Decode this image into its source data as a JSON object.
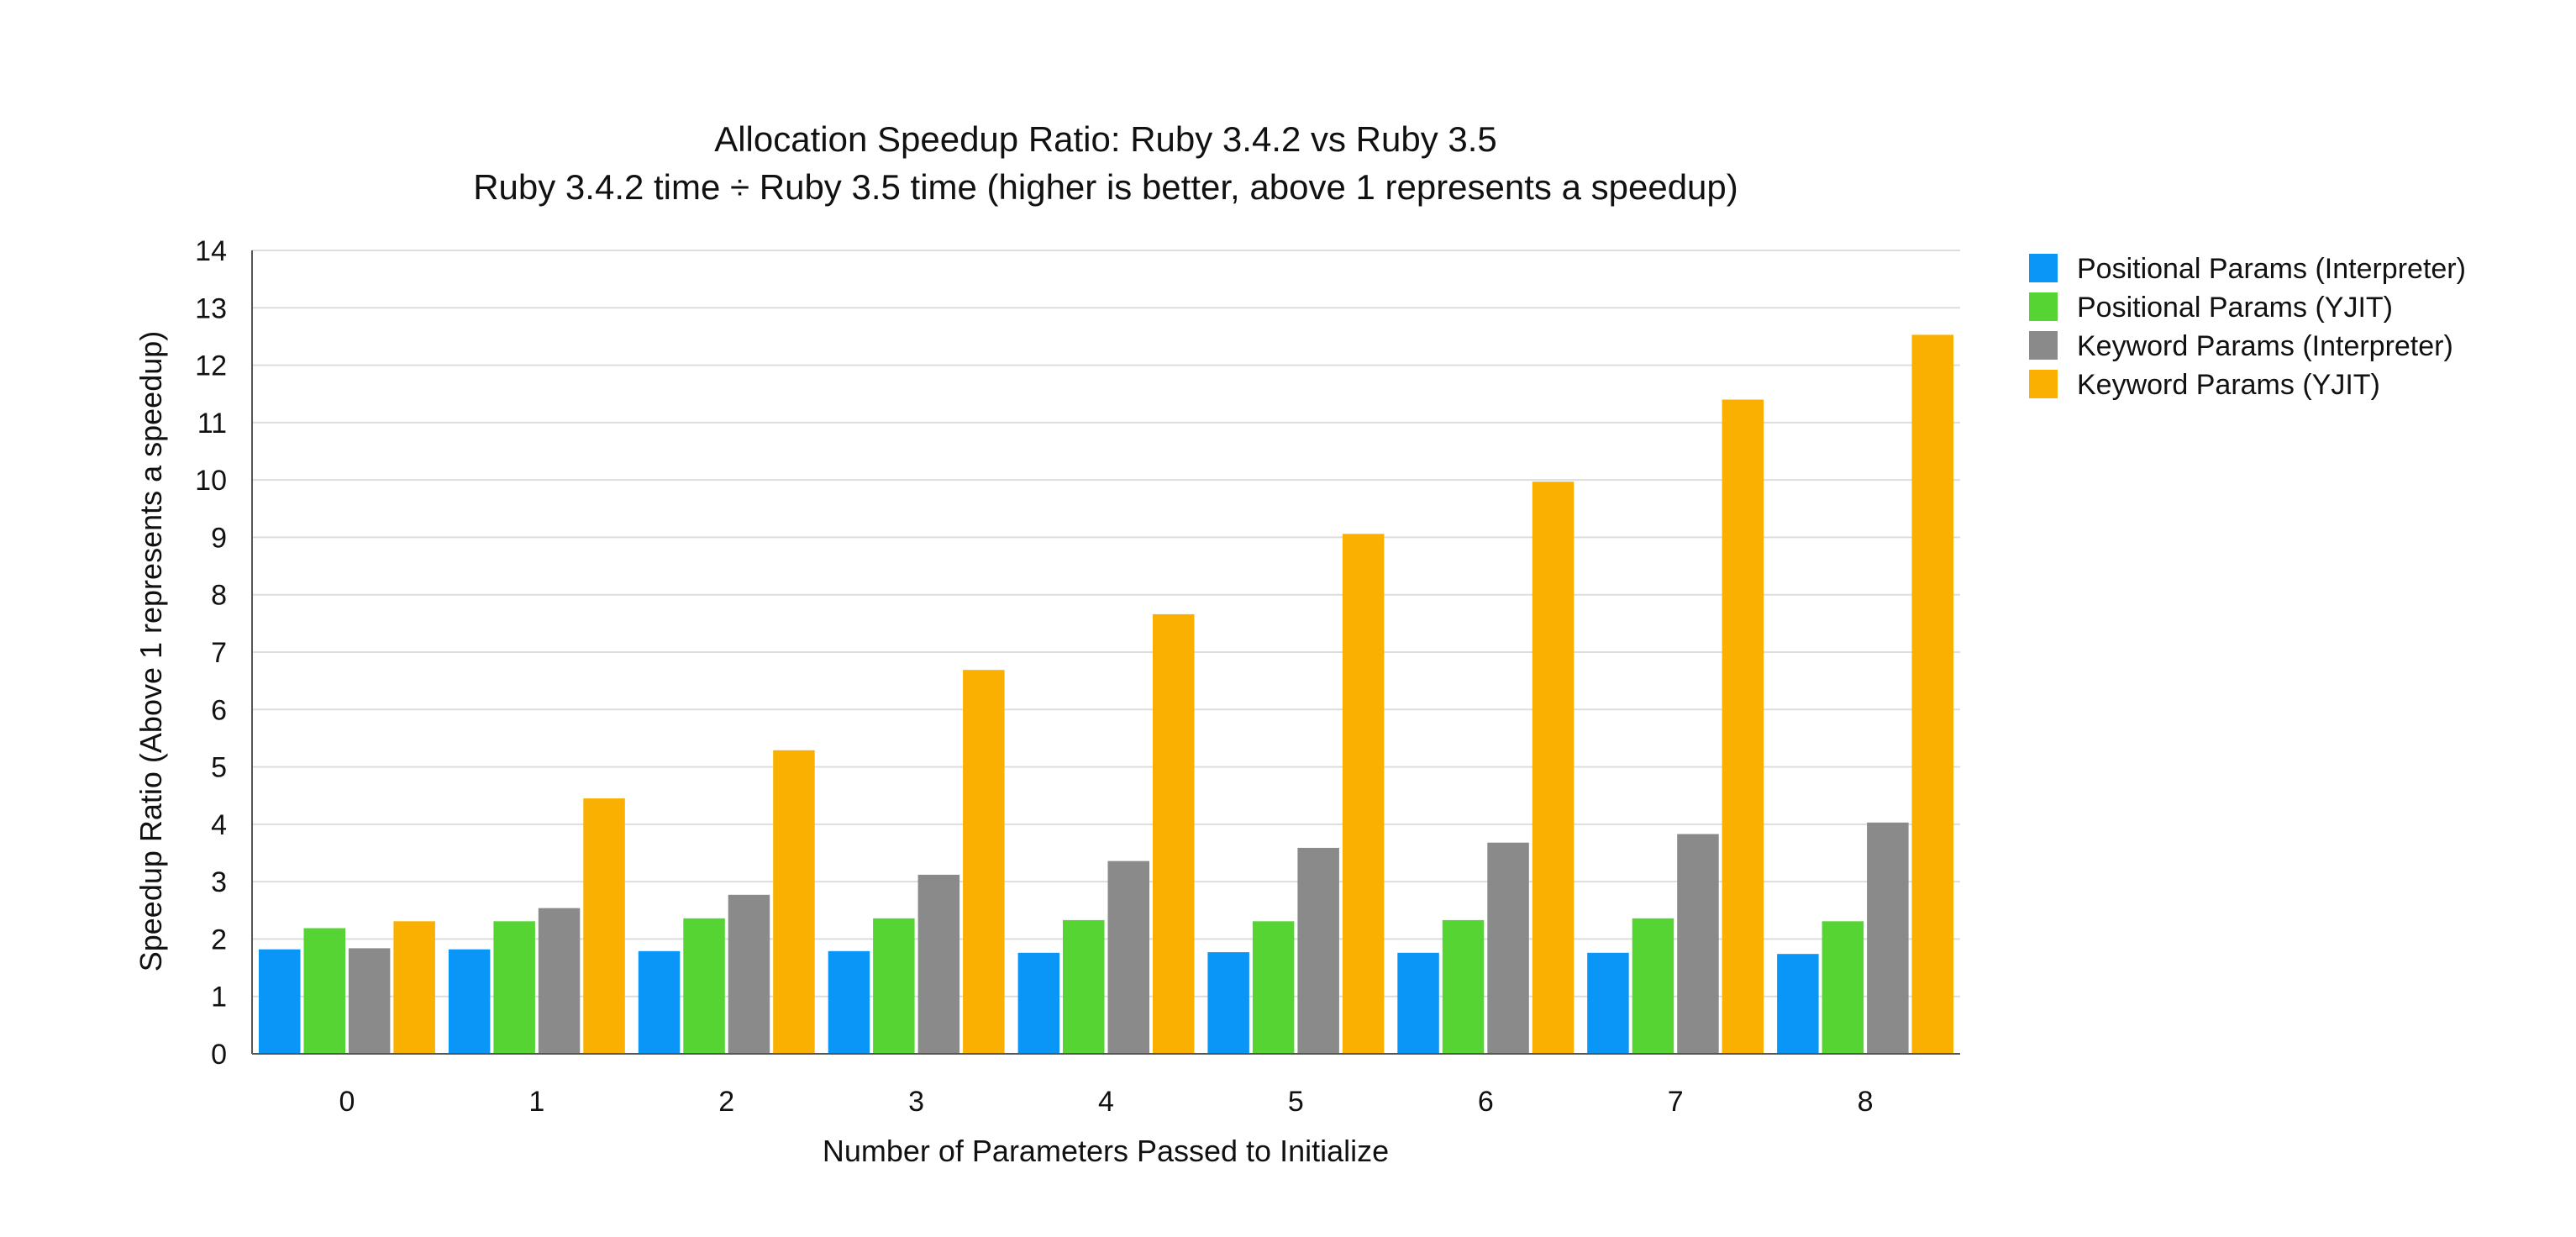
{
  "chart_data": {
    "type": "bar",
    "title": "Allocation Speedup Ratio: Ruby 3.4.2 vs Ruby 3.5",
    "subtitle": "Ruby 3.4.2 time ÷ Ruby 3.5 time (higher is better, above 1 represents a speedup)",
    "xlabel": "Number of Parameters Passed to Initialize",
    "ylabel": "Speedup Ratio (Above 1 represents a speedup)",
    "categories": [
      "0",
      "1",
      "2",
      "3",
      "4",
      "5",
      "6",
      "7",
      "8"
    ],
    "ylim": [
      0,
      14
    ],
    "yticks": [
      "0",
      "1",
      "2",
      "3",
      "4",
      "5",
      "6",
      "7",
      "8",
      "9",
      "10",
      "11",
      "12",
      "13",
      "14"
    ],
    "grid": true,
    "legend_position": "right",
    "series": [
      {
        "name": "Positional Params (Interpreter)",
        "color": "#0a96f6",
        "values": [
          1.82,
          1.82,
          1.79,
          1.79,
          1.76,
          1.77,
          1.76,
          1.76,
          1.74
        ]
      },
      {
        "name": "Positional Params (YJIT)",
        "color": "#55d434",
        "values": [
          2.19,
          2.31,
          2.36,
          2.36,
          2.33,
          2.31,
          2.33,
          2.36,
          2.31
        ]
      },
      {
        "name": "Keyword Params (Interpreter)",
        "color": "#8a8a8a",
        "values": [
          1.84,
          2.54,
          2.77,
          3.12,
          3.36,
          3.59,
          3.68,
          3.83,
          4.03
        ]
      },
      {
        "name": "Keyword Params (YJIT)",
        "color": "#f9b000",
        "values": [
          2.31,
          4.45,
          5.29,
          6.69,
          7.66,
          9.06,
          9.97,
          11.4,
          12.53
        ]
      }
    ]
  }
}
